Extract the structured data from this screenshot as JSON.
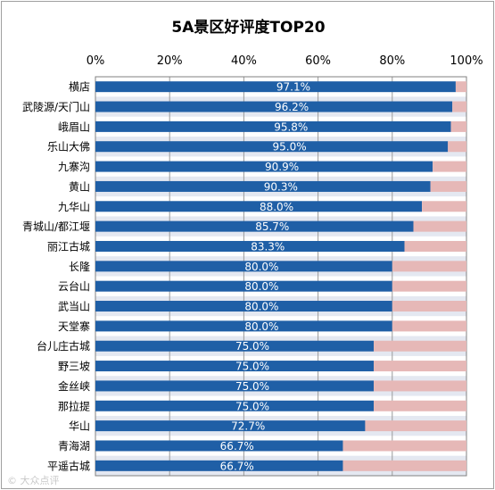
{
  "chart_data": {
    "type": "bar",
    "orientation": "horizontal",
    "stacked": true,
    "title": "5A景区好评度TOP20",
    "xlim": [
      0,
      100
    ],
    "x_ticks": [
      "0%",
      "20%",
      "40%",
      "60%",
      "80%",
      "100%"
    ],
    "x_axis_position": "top",
    "categories": [
      "横店",
      "武陵源/天门山",
      "峨眉山",
      "乐山大佛",
      "九寨沟",
      "黄山",
      "九华山",
      "青城山/都江堰",
      "丽江古城",
      "长隆",
      "云台山",
      "武当山",
      "天堂寨",
      "台儿庄古城",
      "野三坡",
      "金丝峡",
      "那拉提",
      "华山",
      "青海湖",
      "平遥古城"
    ],
    "values": [
      97.1,
      96.2,
      95.8,
      95.0,
      90.9,
      90.3,
      88.0,
      85.7,
      83.3,
      80.0,
      80.0,
      80.0,
      80.0,
      75.0,
      75.0,
      75.0,
      75.0,
      72.7,
      66.7,
      66.7
    ],
    "value_labels": [
      "97.1%",
      "96.2%",
      "95.8%",
      "95.0%",
      "90.9%",
      "90.3%",
      "88.0%",
      "85.7%",
      "83.3%",
      "80.0%",
      "80.0%",
      "80.0%",
      "80.0%",
      "75.0%",
      "75.0%",
      "75.0%",
      "75.0%",
      "72.7%",
      "66.7%",
      "66.7%"
    ],
    "grid": true,
    "legend": "none",
    "colors": {
      "bar": "#1f5fa6",
      "remainder": "#e6b8b7",
      "plot_band_light": "#ffffff",
      "plot_band_shade": "#e4e8f1",
      "grid": "#9a9a9a"
    }
  },
  "watermark": "© 大众点评"
}
